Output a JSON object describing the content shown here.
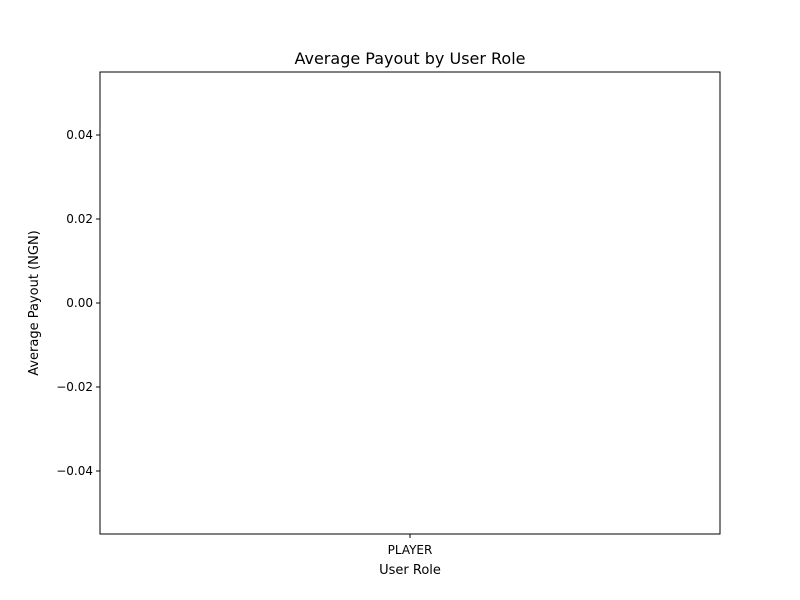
{
  "chart_data": {
    "type": "bar",
    "title": "Average Payout by User Role",
    "xlabel": "User Role",
    "ylabel": "Average Payout (NGN)",
    "categories": [
      "PLAYER"
    ],
    "values": [
      0
    ],
    "ylim": [
      -0.055,
      0.055
    ],
    "yticks": [
      0.04,
      0.02,
      0.0,
      -0.02,
      -0.04
    ],
    "ytick_labels": [
      "0.04",
      "0.02",
      "0.00",
      "−0.02",
      "−0.04"
    ],
    "grid": false
  }
}
